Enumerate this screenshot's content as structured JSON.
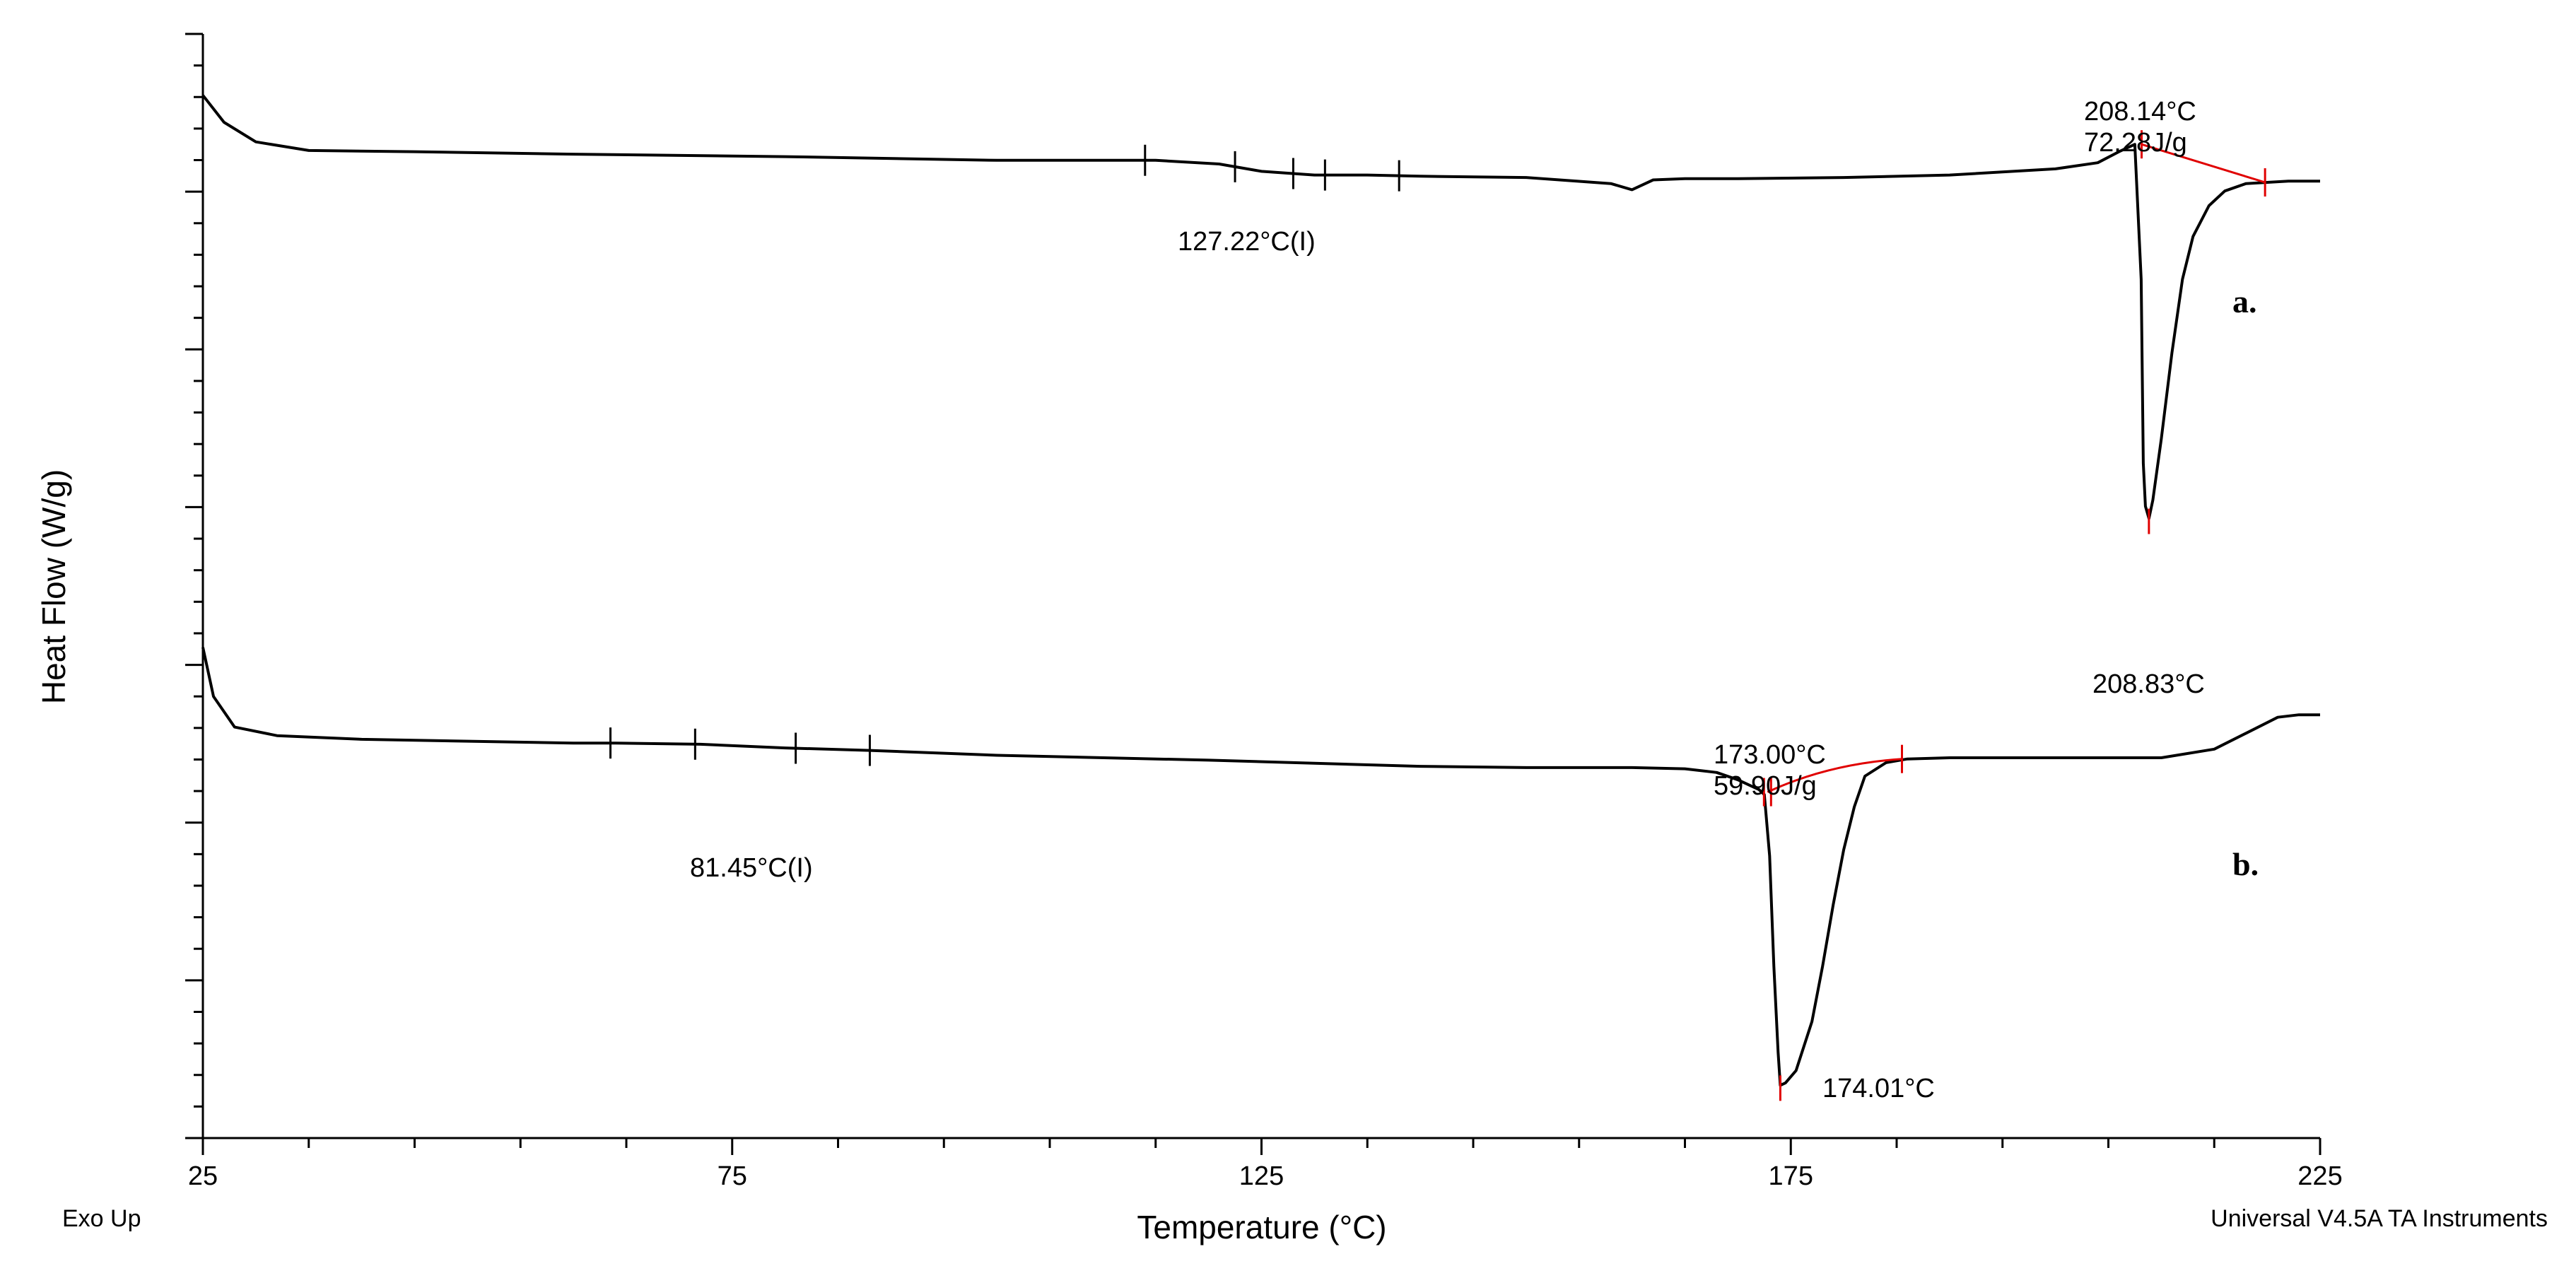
{
  "chart_data": {
    "type": "line",
    "title": "",
    "xlabel": "Temperature (°C)",
    "ylabel": "Heat Flow (W/g)",
    "xlim": [
      25,
      225
    ],
    "x_ticks": [
      "25",
      "75",
      "125",
      "175",
      "225"
    ],
    "grid": false,
    "corner_left": "Exo Up",
    "corner_right": "Universal V4.5A TA Instruments",
    "series": [
      {
        "label": "a.",
        "x": [
          25,
          27,
          30,
          35,
          45,
          60,
          80,
          100,
          115,
          121,
          125,
          130,
          135,
          140,
          150,
          158,
          160,
          162,
          165,
          170,
          180,
          190,
          200,
          204,
          206,
          207.5,
          208.1,
          208.3,
          208.5,
          208.83,
          209.2,
          210,
          211,
          212,
          213,
          214.5,
          216,
          218,
          220,
          222,
          225
        ],
        "y": [
          0.5,
          0.28,
          0.12,
          0.05,
          0.04,
          0.02,
          0.0,
          -0.03,
          -0.03,
          -0.06,
          -0.12,
          -0.15,
          -0.15,
          -0.16,
          -0.17,
          -0.22,
          -0.27,
          -0.19,
          -0.18,
          -0.18,
          -0.17,
          -0.15,
          -0.1,
          -0.05,
          0.04,
          0.1,
          -1.0,
          -2.5,
          -2.85,
          -2.95,
          -2.8,
          -2.3,
          -1.6,
          -1.0,
          -0.65,
          -0.4,
          -0.28,
          -0.22,
          -0.21,
          -0.2,
          -0.2
        ]
      },
      {
        "label": "b.",
        "x": [
          25,
          26,
          28,
          32,
          40,
          60,
          64,
          72,
          80,
          88,
          100,
          120,
          140,
          150,
          160,
          165,
          168,
          170,
          172,
          172.5,
          173,
          173.4,
          173.8,
          174.01,
          174.5,
          175.5,
          177,
          178,
          179,
          180,
          181,
          182,
          184,
          186,
          190,
          200,
          210,
          215,
          218,
          221,
          223,
          225
        ],
        "y": [
          -4.0,
          -4.4,
          -4.65,
          -4.72,
          -4.75,
          -4.78,
          -4.78,
          -4.79,
          -4.82,
          -4.84,
          -4.88,
          -4.92,
          -4.97,
          -4.98,
          -4.98,
          -4.99,
          -5.02,
          -5.08,
          -5.16,
          -5.2,
          -5.7,
          -6.6,
          -7.3,
          -7.57,
          -7.55,
          -7.45,
          -7.05,
          -6.6,
          -6.1,
          -5.65,
          -5.3,
          -5.05,
          -4.94,
          -4.91,
          -4.9,
          -4.9,
          -4.9,
          -4.83,
          -4.7,
          -4.57,
          -4.55,
          -4.55
        ]
      }
    ],
    "annotations": [
      {
        "lines": [
          "208.14°C",
          "72.28J/g"
        ],
        "x": 208.14,
        "y": 0.1
      },
      {
        "lines": [
          "208.83°C"
        ],
        "x": 208.83,
        "y": -2.95
      },
      {
        "lines": [
          "127.22°C(I)"
        ],
        "x": 127.22,
        "y": -0.14
      },
      {
        "lines": [
          "173.00°C",
          "59.90J/g"
        ],
        "x": 173.0,
        "y": -5.18
      },
      {
        "lines": [
          "174.01°C"
        ],
        "x": 174.01,
        "y": -7.57
      },
      {
        "lines": [
          "81.45°C(I)"
        ],
        "x": 81.45,
        "y": -4.83
      }
    ]
  }
}
